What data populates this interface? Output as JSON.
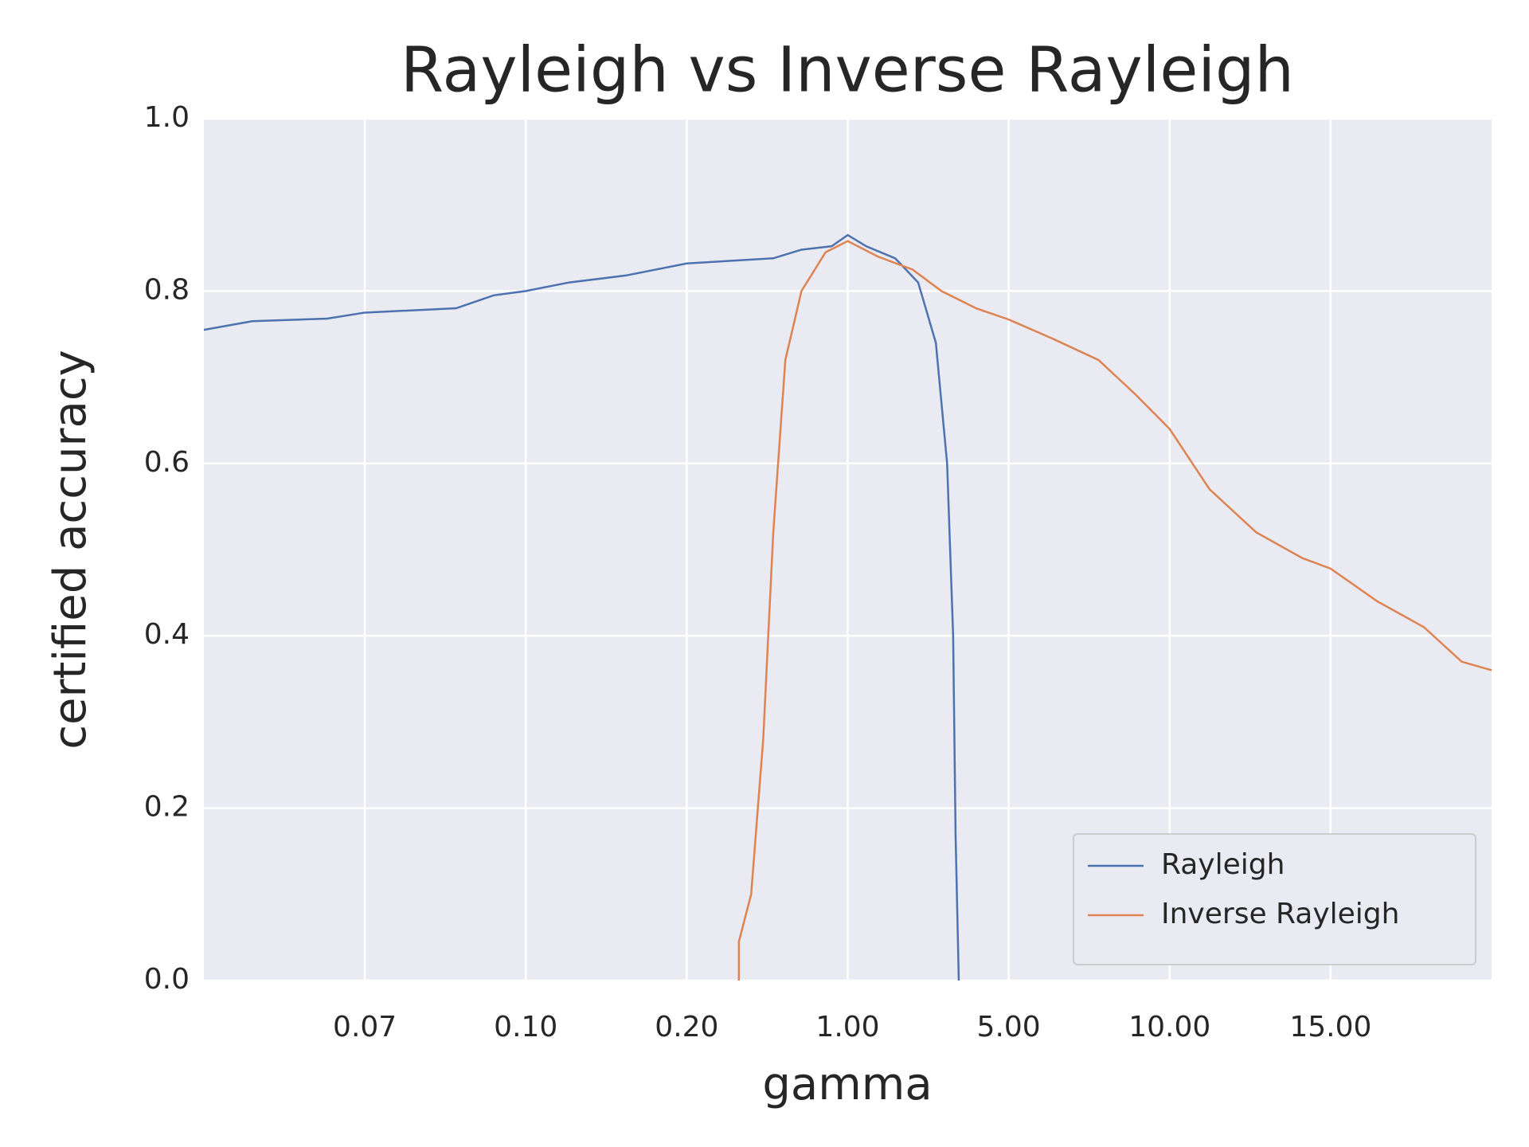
{
  "chart_data": {
    "type": "line",
    "title": "Rayleigh vs Inverse Rayleigh",
    "xlabel": "gamma",
    "ylabel": "certified accuracy",
    "xlim": [
      0.04,
      20
    ],
    "xticks": [
      0.07,
      {
        "value": 0.1,
        "label": "0.10"
      },
      {
        "value": 0.2,
        "label": "0.20"
      },
      {
        "value": 1,
        "label": "1.00"
      },
      {
        "value": 5,
        "label": "5.00"
      },
      {
        "value": 10,
        "label": "10.00"
      },
      {
        "value": 15,
        "label": "15.00"
      }
    ],
    "ylim": [
      0,
      1
    ],
    "yticks": [
      {
        "value": 0,
        "label": "0.0"
      },
      0.2,
      0.4,
      0.6,
      0.8,
      {
        "value": 1,
        "label": "1.0"
      }
    ],
    "grid": true,
    "legend": "lower right",
    "series": [
      {
        "name": "Rayleigh",
        "color": "#4c72b0",
        "x": [
          0.04,
          0.049,
          0.063,
          0.07,
          0.087,
          0.094,
          0.1,
          0.127,
          0.162,
          0.2,
          0.63,
          0.77,
          0.92,
          1.0,
          1.46,
          2.18,
          2.75,
          3.19,
          3.47,
          3.62,
          3.68,
          3.76
        ],
        "values": [
          0.755,
          0.765,
          0.768,
          0.775,
          0.78,
          0.795,
          0.8,
          0.81,
          0.818,
          0.832,
          0.838,
          0.848,
          0.852,
          0.865,
          0.852,
          0.838,
          0.81,
          0.74,
          0.6,
          0.4,
          0.17,
          0.0
        ]
      },
      {
        "name": "Inverse Rayleigh",
        "color": "#dd8452",
        "x": [
          0.459,
          0.459,
          0.52,
          0.58,
          0.63,
          0.69,
          0.77,
          0.89,
          1.0,
          1.75,
          2.61,
          3.33,
          4.19,
          5.0,
          6.35,
          7.79,
          8.94,
          10.0,
          11.24,
          12.69,
          14.13,
          15.0,
          16.45,
          17.9,
          19.07,
          20
        ],
        "values": [
          0.0,
          0.045,
          0.1,
          0.28,
          0.52,
          0.72,
          0.8,
          0.845,
          0.858,
          0.84,
          0.825,
          0.8,
          0.78,
          0.767,
          0.745,
          0.72,
          0.68,
          0.64,
          0.57,
          0.52,
          0.49,
          0.478,
          0.44,
          0.41,
          0.37,
          0.36
        ]
      }
    ]
  }
}
